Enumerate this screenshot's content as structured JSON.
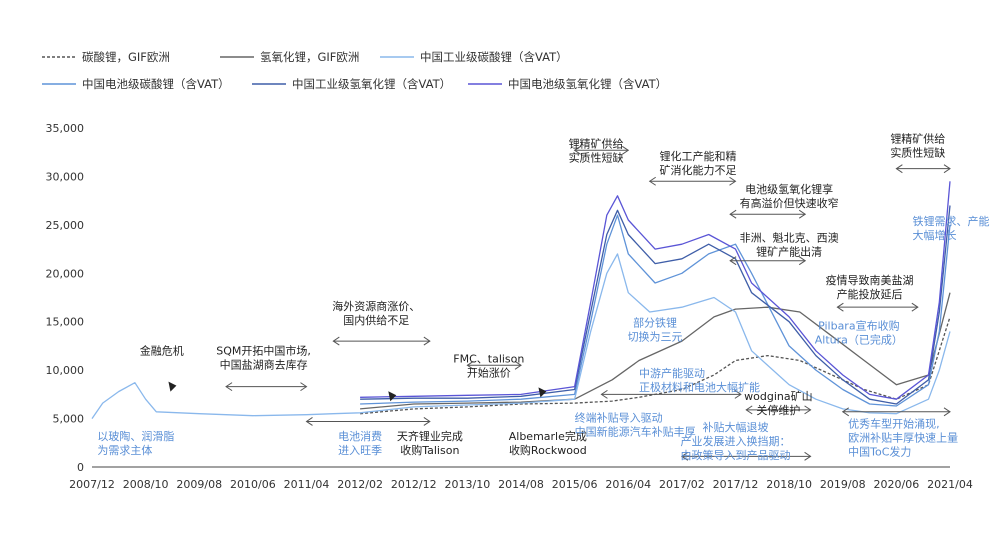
{
  "chart_data": {
    "type": "line",
    "x_start": "2007/12",
    "x_end": "2021/04",
    "xticks": [
      "2007/12",
      "2008/10",
      "2009/08",
      "2010/06",
      "2011/04",
      "2012/02",
      "2012/12",
      "2013/10",
      "2014/08",
      "2015/06",
      "2016/04",
      "2017/02",
      "2017/12",
      "2018/10",
      "2019/08",
      "2020/06",
      "2021/04"
    ],
    "ylim": [
      0,
      35000
    ],
    "yticks": [
      "0",
      "5,000",
      "10,000",
      "15,000",
      "20,000",
      "25,000",
      "30,000",
      "35,000"
    ],
    "grid": false,
    "legend_position": "top-left",
    "series": [
      {
        "name": "碳酸锂，GIF欧洲",
        "color": "#555555",
        "dash": "3,2",
        "points": [
          [
            "2012/02",
            5500
          ],
          [
            "2012/12",
            6000
          ],
          [
            "2013/10",
            6200
          ],
          [
            "2014/08",
            6500
          ],
          [
            "2015/06",
            6600
          ],
          [
            "2016/01",
            6800
          ],
          [
            "2016/06",
            7200
          ],
          [
            "2017/02",
            8000
          ],
          [
            "2017/08",
            9500
          ],
          [
            "2017/12",
            11000
          ],
          [
            "2018/06",
            11500
          ],
          [
            "2018/12",
            11000
          ],
          [
            "2019/06",
            9500
          ],
          [
            "2019/12",
            8000
          ],
          [
            "2020/06",
            7000
          ],
          [
            "2020/12",
            8500
          ],
          [
            "2021/04",
            15500
          ]
        ]
      },
      {
        "name": "氢氧化锂，GIF欧洲",
        "color": "#666666",
        "dash": "",
        "points": [
          [
            "2012/02",
            6000
          ],
          [
            "2012/12",
            6500
          ],
          [
            "2013/10",
            6600
          ],
          [
            "2014/08",
            6700
          ],
          [
            "2015/06",
            7000
          ],
          [
            "2016/01",
            9000
          ],
          [
            "2016/06",
            11000
          ],
          [
            "2017/02",
            13000
          ],
          [
            "2017/08",
            15500
          ],
          [
            "2017/12",
            16300
          ],
          [
            "2018/06",
            16500
          ],
          [
            "2018/12",
            16000
          ],
          [
            "2019/06",
            13500
          ],
          [
            "2019/12",
            11000
          ],
          [
            "2020/06",
            8500
          ],
          [
            "2020/12",
            9500
          ],
          [
            "2021/04",
            18000
          ]
        ]
      },
      {
        "name": "中国工业级碳酸锂（含VAT）",
        "color": "#8ab8ec",
        "dash": "",
        "points": [
          [
            "2007/12",
            5000
          ],
          [
            "2008/02",
            6600
          ],
          [
            "2008/05",
            7800
          ],
          [
            "2008/08",
            8700
          ],
          [
            "2008/10",
            7000
          ],
          [
            "2008/12",
            5700
          ],
          [
            "2009/08",
            5500
          ],
          [
            "2010/06",
            5300
          ],
          [
            "2011/04",
            5400
          ],
          [
            "2011/09",
            5500
          ],
          [
            "2012/02",
            5600
          ],
          [
            "2012/12",
            6200
          ],
          [
            "2013/10",
            6400
          ],
          [
            "2014/08",
            6600
          ],
          [
            "2015/06",
            7000
          ],
          [
            "2015/09",
            14000
          ],
          [
            "2015/12",
            20000
          ],
          [
            "2016/02",
            22000
          ],
          [
            "2016/04",
            18000
          ],
          [
            "2016/08",
            16000
          ],
          [
            "2017/02",
            16500
          ],
          [
            "2017/08",
            17500
          ],
          [
            "2017/12",
            16000
          ],
          [
            "2018/03",
            12000
          ],
          [
            "2018/10",
            8500
          ],
          [
            "2019/03",
            7000
          ],
          [
            "2019/08",
            6000
          ],
          [
            "2020/01",
            5600
          ],
          [
            "2020/06",
            5500
          ],
          [
            "2020/12",
            7000
          ],
          [
            "2021/02",
            10000
          ],
          [
            "2021/04",
            14000
          ]
        ]
      },
      {
        "name": "中国电池级碳酸锂（含VAT）",
        "color": "#5f93d8",
        "dash": "",
        "points": [
          [
            "2012/02",
            6500
          ],
          [
            "2012/12",
            6700
          ],
          [
            "2013/10",
            6800
          ],
          [
            "2014/08",
            7000
          ],
          [
            "2015/06",
            7500
          ],
          [
            "2015/09",
            15000
          ],
          [
            "2015/12",
            23000
          ],
          [
            "2016/02",
            26000
          ],
          [
            "2016/04",
            22000
          ],
          [
            "2016/09",
            19000
          ],
          [
            "2017/02",
            20000
          ],
          [
            "2017/07",
            22000
          ],
          [
            "2017/12",
            23000
          ],
          [
            "2018/03",
            20000
          ],
          [
            "2018/10",
            12500
          ],
          [
            "2019/03",
            10000
          ],
          [
            "2019/08",
            8000
          ],
          [
            "2020/01",
            6500
          ],
          [
            "2020/06",
            6300
          ],
          [
            "2020/12",
            8500
          ],
          [
            "2021/02",
            14000
          ],
          [
            "2021/04",
            25000
          ]
        ]
      },
      {
        "name": "中国工业级氢氧化锂（含VAT）",
        "color": "#3f5ea8",
        "dash": "",
        "points": [
          [
            "2012/02",
            7000
          ],
          [
            "2012/12",
            7100
          ],
          [
            "2013/10",
            7100
          ],
          [
            "2014/08",
            7300
          ],
          [
            "2015/06",
            8000
          ],
          [
            "2015/09",
            16000
          ],
          [
            "2015/12",
            24000
          ],
          [
            "2016/02",
            26500
          ],
          [
            "2016/04",
            24000
          ],
          [
            "2016/09",
            21000
          ],
          [
            "2017/02",
            21500
          ],
          [
            "2017/07",
            23000
          ],
          [
            "2017/12",
            21500
          ],
          [
            "2018/03",
            18000
          ],
          [
            "2018/10",
            15000
          ],
          [
            "2019/03",
            11500
          ],
          [
            "2019/08",
            9000
          ],
          [
            "2020/01",
            7000
          ],
          [
            "2020/06",
            6500
          ],
          [
            "2020/12",
            9000
          ],
          [
            "2021/02",
            16000
          ],
          [
            "2021/04",
            27000
          ]
        ]
      },
      {
        "name": "中国电池级氢氧化锂（含VAT）",
        "color": "#5a55d6",
        "dash": "",
        "points": [
          [
            "2012/02",
            7200
          ],
          [
            "2012/12",
            7300
          ],
          [
            "2013/10",
            7400
          ],
          [
            "2014/08",
            7500
          ],
          [
            "2015/06",
            8300
          ],
          [
            "2015/09",
            17000
          ],
          [
            "2015/12",
            26000
          ],
          [
            "2016/02",
            28000
          ],
          [
            "2016/04",
            25500
          ],
          [
            "2016/09",
            22500
          ],
          [
            "2017/02",
            23000
          ],
          [
            "2017/07",
            24000
          ],
          [
            "2017/12",
            22500
          ],
          [
            "2018/03",
            19000
          ],
          [
            "2018/10",
            15500
          ],
          [
            "2019/03",
            12000
          ],
          [
            "2019/08",
            9500
          ],
          [
            "2020/01",
            7500
          ],
          [
            "2020/06",
            7000
          ],
          [
            "2020/12",
            9500
          ],
          [
            "2021/02",
            17000
          ],
          [
            "2021/04",
            29500
          ]
        ]
      }
    ],
    "annotations": [
      {
        "id": "financial-crisis",
        "lines": [
          "金融危机"
        ],
        "color": "#222222",
        "x": "2009/01",
        "y": 11600,
        "anchor": "middle"
      },
      {
        "id": "glass-ceramics",
        "lines": [
          "以玻陶、润滑脂",
          "为需求主体"
        ],
        "color": "#5a8fd6",
        "x": "2008/01",
        "y": 2800,
        "anchor": "start"
      },
      {
        "id": "sqm-china",
        "lines": [
          "SQM开拓中国市场,",
          "中国盐湖商去库存"
        ],
        "color": "#222222",
        "x": "2010/08",
        "y": 11600,
        "anchor": "middle"
      },
      {
        "id": "overseas-resource",
        "lines": [
          "海外资源商涨价、",
          "国内供给不足"
        ],
        "color": "#222222",
        "x": "2012/05",
        "y": 16200,
        "anchor": "middle"
      },
      {
        "id": "battery-consumption",
        "lines": [
          "电池消费",
          "进入旺季"
        ],
        "color": "#5a8fd6",
        "x": "2012/02",
        "y": 2800,
        "anchor": "middle"
      },
      {
        "id": "tianqi-talison",
        "lines": [
          "天齐锂业完成",
          "收购Talison"
        ],
        "color": "#222222",
        "x": "2013/03",
        "y": 2800,
        "anchor": "middle"
      },
      {
        "id": "fmc-talison",
        "lines": [
          "FMC、talison",
          "开始涨价"
        ],
        "color": "#222222",
        "x": "2014/02",
        "y": 10800,
        "anchor": "middle"
      },
      {
        "id": "albemarle",
        "lines": [
          "Albemarle完成",
          "收购Rockwood"
        ],
        "color": "#222222",
        "x": "2015/01",
        "y": 2800,
        "anchor": "middle"
      },
      {
        "id": "terminal-subsidy",
        "lines": [
          "终端补贴导入驱动",
          "中国新能源汽车补贴丰厚"
        ],
        "color": "#5a8fd6",
        "x": "2015/06",
        "y": 4700,
        "anchor": "start"
      },
      {
        "id": "spodumene-shortage-1",
        "lines": [
          "锂精矿供给",
          "实质性短缺"
        ],
        "color": "#222222",
        "x": "2015/10",
        "y": 33000,
        "anchor": "middle"
      },
      {
        "id": "partial-iron-lithium",
        "lines": [
          "部分铁锂",
          "切换为三元"
        ],
        "color": "#5a8fd6",
        "x": "2016/09",
        "y": 14500,
        "anchor": "middle"
      },
      {
        "id": "midstream-capacity",
        "lines": [
          "中游产能驱动",
          "正极材料和电池大幅扩能"
        ],
        "color": "#5a8fd6",
        "x": "2016/06",
        "y": 9300,
        "anchor": "start"
      },
      {
        "id": "lithium-capacity",
        "lines": [
          "锂化工产能和精",
          "矿消化能力不足"
        ],
        "color": "#222222",
        "x": "2017/05",
        "y": 31700,
        "anchor": "middle"
      },
      {
        "id": "battery-premium",
        "lines": [
          "电池级氢氧化锂享",
          "有高溢价但快速收窄"
        ],
        "color": "#222222",
        "x": "2018/10",
        "y": 28300,
        "anchor": "middle"
      },
      {
        "id": "africa-quebec",
        "lines": [
          "非洲、魁北克、西澳",
          "锂矿产能出清"
        ],
        "color": "#222222",
        "x": "2018/10",
        "y": 23300,
        "anchor": "middle"
      },
      {
        "id": "wodgina",
        "lines": [
          "wodgina矿山",
          "关停维护"
        ],
        "color": "#222222",
        "x": "2018/08",
        "y": 6900,
        "anchor": "middle"
      },
      {
        "id": "subsidy-decline",
        "lines": [
          "补贴大幅退坡",
          "产业发展进入换挡期：",
          "由政策导入到产品驱动"
        ],
        "color": "#5a8fd6",
        "x": "2017/12",
        "y": 3700,
        "anchor": "middle"
      },
      {
        "id": "pandemic-salt-lake",
        "lines": [
          "疫情导致南美盐湖",
          "产能投放延后"
        ],
        "color": "#222222",
        "x": "2020/01",
        "y": 18900,
        "anchor": "middle"
      },
      {
        "id": "pilbara-altura",
        "lines": [
          "Pilbara宣布收购",
          "Altura（已完成）"
        ],
        "color": "#5a8fd6",
        "x": "2019/11",
        "y": 14200,
        "anchor": "middle"
      },
      {
        "id": "iron-lithium-demand",
        "lines": [
          "铁锂需求、产能",
          "大幅增长"
        ],
        "color": "#5a8fd6",
        "x": "2020/09",
        "y": 25000,
        "anchor": "start"
      },
      {
        "id": "spodumene-shortage-2",
        "lines": [
          "锂精矿供给",
          "实质性短缺"
        ],
        "color": "#222222",
        "x": "2020/10",
        "y": 33500,
        "anchor": "middle"
      },
      {
        "id": "quality-models",
        "lines": [
          "优秀车型开始涌现,",
          "欧洲补贴丰厚快速上量",
          "中国ToC发力"
        ],
        "color": "#5a8fd6",
        "x": "2019/09",
        "y": 4100,
        "anchor": "start"
      }
    ],
    "arrows": [
      {
        "from": "2010/01",
        "to": "2011/04",
        "y": 8300
      },
      {
        "from": "2011/09",
        "to": "2013/03",
        "y": 13000
      },
      {
        "from": "2011/04",
        "to": "2013/03",
        "y": 4700
      },
      {
        "from": "2013/10",
        "to": "2014/08",
        "y": 10500
      },
      {
        "from": "2015/06",
        "to": "2016/04",
        "y": 32700
      },
      {
        "from": "2015/11",
        "to": "2018/01",
        "y": 7500
      },
      {
        "from": "2016/08",
        "to": "2017/12",
        "y": 29500
      },
      {
        "from": "2017/11",
        "to": "2019/01",
        "y": 26100
      },
      {
        "from": "2017/11",
        "to": "2019/01",
        "y": 21300
      },
      {
        "from": "2018/02",
        "to": "2019/02",
        "y": 5900
      },
      {
        "from": "2017/02",
        "to": "2019/02",
        "y": 1100
      },
      {
        "from": "2019/07",
        "to": "2020/10",
        "y": 16500
      },
      {
        "from": "2020/06",
        "to": "2021/04",
        "y": 30800
      },
      {
        "from": "2019/08",
        "to": "2021/04",
        "y": 5700
      }
    ],
    "markers": [
      {
        "x": "2009/03",
        "y": 8300,
        "color": "#222222"
      },
      {
        "x": "2012/08",
        "y": 7300,
        "color": "#222222"
      },
      {
        "x": "2014/12",
        "y": 7700,
        "color": "#222222"
      }
    ]
  }
}
